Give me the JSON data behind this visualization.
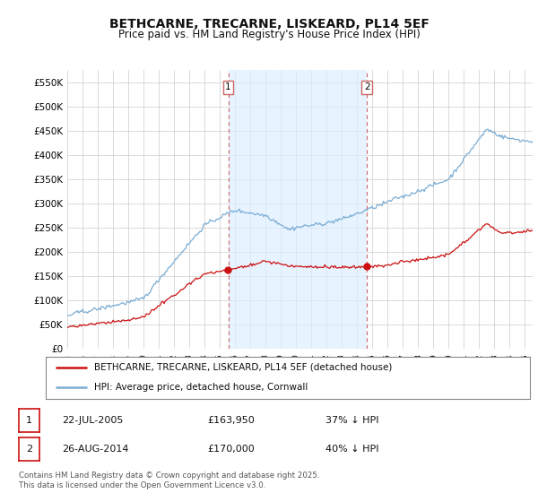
{
  "title": "BETHCARNE, TRECARNE, LISKEARD, PL14 5EF",
  "subtitle": "Price paid vs. HM Land Registry's House Price Index (HPI)",
  "ylabel_ticks": [
    "£0",
    "£50K",
    "£100K",
    "£150K",
    "£200K",
    "£250K",
    "£300K",
    "£350K",
    "£400K",
    "£450K",
    "£500K",
    "£550K"
  ],
  "ylim": [
    0,
    575000
  ],
  "xlim_start": 1995.0,
  "xlim_end": 2025.5,
  "hpi_color": "#7aadd4",
  "price_color": "#cc1111",
  "vline_color": "#cc6666",
  "fill_color": "#ddeeff",
  "marker1_x": 2005.55,
  "marker1_y": 163950,
  "marker2_x": 2014.65,
  "marker2_y": 170000,
  "vline1_x": 2005.55,
  "vline2_x": 2014.65,
  "legend_entries": [
    "BETHCARNE, TRECARNE, LISKEARD, PL14 5EF (detached house)",
    "HPI: Average price, detached house, Cornwall"
  ],
  "annotation1_label": "1",
  "annotation2_label": "2",
  "table_row1": [
    "1",
    "22-JUL-2005",
    "£163,950",
    "37% ↓ HPI"
  ],
  "table_row2": [
    "2",
    "26-AUG-2014",
    "£170,000",
    "40% ↓ HPI"
  ],
  "footer": "Contains HM Land Registry data © Crown copyright and database right 2025.\nThis data is licensed under the Open Government Licence v3.0.",
  "background_color": "#ffffff",
  "grid_color": "#cccccc"
}
